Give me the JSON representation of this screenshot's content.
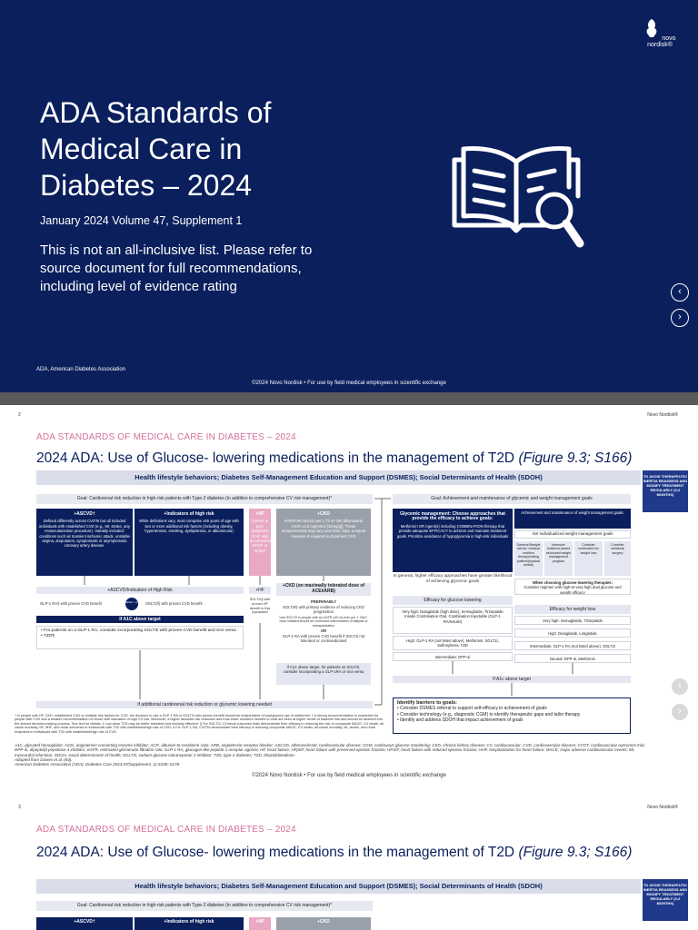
{
  "slide1": {
    "brand": "novo nordisk®",
    "title": "ADA Standards of Medical Care in Diabetes – 2024",
    "subtitle": "January 2024 Volume 47, Supplement 1",
    "note": "This is not an all-inclusive list. Please refer to source document for full recommendations, including level of evidence rating",
    "abbreviation": "ADA, American Diabetes Association",
    "footer": "©2024 Novo Nordisk • For use by field medical employees in scientific exchange",
    "icon": "book-magnifier-icon"
  },
  "slide2": {
    "page_number": "2",
    "brand": "Novo Nordisk®",
    "kicker": "ADA STANDARDS OF MEDICAL CARE IN DIABETES – 2024",
    "title": "2024 ADA: Use of Glucose- lowering medications in the management of T2D",
    "title_ref": "(Figure 9.3; S166)",
    "top_bar": "Health lifestyle behaviors; Diabetes Self-Management Education and Support (DSMES); Social Determinants of Health (SDOH)",
    "side_box": "TO AVOID THERAPEUTIC INERTIA REASSESS AND MODIFY TREATMENT REGULARLY (3-6 MONTHS)",
    "goal_left": "Goal: Cardiorenal risk reduction in high-risk patients with Type-2 diabetes (in addition to comprehensive CV risk management)*",
    "goal_right": "Goal: Achievement and maintenance of glycemic and weight management goals",
    "ascvd_head": "+ASCVD†",
    "ascvd_text": "Defined differently across CVOTs but all included individuals with established CVD (e.g., MI, stroke, any revascularization procedure). Variably included: conditions such as transient ischemic attack, unstable angina, amputation, symptomatic or asymptomatic coronary artery disease.",
    "risk_head": "+Indicators of high risk",
    "risk_text": "While definitions vary, most comprise ≥55 years of age with two or more additional risk factors (including obesity, hypertension, smoking, dyslipidemia, or albuminuria)",
    "hf_head": "+HF",
    "hf_text": "Current or prior symptoms of HF with documented HFrEF or HFpEF",
    "ckd_head": "+CKD",
    "ckd_text": "eGFR<60 mL/min per 1.73 m² OR albuminuria (ACR ≥3.0 mg/mmol [30mg/g]). These measurements may vary over time; thus, a repeat measure is required to document CKD",
    "ascvd_risk_banner": "+ASCVD/Indicators of High Risk",
    "glp1_text": "GLP-1 RA§ with proven CVD benefit",
    "either_or": "Either / or",
    "sglt2_text": "SGLT2i§ with proven CVD benefit",
    "a1c_target": "If A1C above target",
    "ascvd_bullets": [
      "For patients on a GLP-1 RA, consider incorporating SGLT2i with proven CVD benefit and vice versa",
      "TZD¶"
    ],
    "hf_banner": "+HF",
    "hf_box": "SGLT2i§ with proven HF benefit in this population",
    "ckd_banner": "+CKD (on maximally tolerated dose of ACEi/ARB)",
    "preferably": "PREFERABLY",
    "ckd_box": "SGLT2i§ with primary evidence of reducing CKD progression",
    "ckd_box2": "Use SGLT2i in people with an eGFR ≥20 mL/min per 1.73m²; once initiated should be continued until initiation of dialysis or transplantation",
    "or": "OR",
    "ckd_box3": "GLP-1 RA with proven CVD benefit if SGLT2i not tolerated or contraindicated",
    "ckd_box4": "If A1C above target, for patients on SGLT2i, consider incorporating a GLP-1RA or vice versa",
    "cardiorenal_bar": "If additional cardiorenal risk reduction or glycemic lowering needed",
    "glycemic_head": "Glycemic management: Choose approaches that provide the efficacy to achieve goals:",
    "glycemic_text": "Metformin OR Agent(s) including COMBINATION therapy that provide adequate EFFICACY to achieve and maintain treatment goals. Prioritize avoidance of hypoglycemia in high-risk individuals",
    "weight_head": "Achievement and maintenance of weight management goals:",
    "weight_sub": "Set individualized weight management goals",
    "weight_cols": [
      "General lifestyle advice: medical nutrition therapy/eating pattern/physical activity",
      "Intensive evidence-based structured weight management program",
      "Consider medication for weight loss",
      "Consider metabolic surgery"
    ],
    "glucose_thera": "When choosing glucose-lowering therapies:",
    "glucose_thera_text": "Consider regimen with high-to-very-high dual glucose and weight efficacy",
    "higher_efficacy": "In general, higher efficacy approaches have greater likelihood of achieving glycemic goals",
    "efficacy_glucose": "Efficacy for glucose lowering",
    "very_high_g": "Very high: Dulaglutide (high dose), Semaglutide, Tirzepatide",
    "insulin": "Insulin Combination Oral, Combination Injectable (GLP-1 RA/Insulin)",
    "high_g": "High: GLP-1 RA (not listed above), Metformin, SGLT2i, Sulfonylurea, TZD",
    "intermediate_g": "Intermediate: DPP-4i",
    "efficacy_weight": "Efficacy for weight loss",
    "very_high_w": "Very high: Semaglutide, Tirzepatide",
    "high_w": "High: Dulaglutide, Liraglutide",
    "intermediate_w": "Intermediate: GLP-1 RA (not listed above), SGLT2i",
    "neutral_w": "Neutral: DPP-4i, Metformin",
    "a1c_right": "If A1c above target",
    "barriers_head": "Identify barriers to goals:",
    "barriers": [
      "Consider DSMES referral to support self-efficacy in achievement of goals",
      "Consider technology (e.g., diagnostic CGM) to identify therapeutic gaps and tailor therapy",
      "Identify and address SDOH that impact achievement of goals"
    ],
    "footnote": "* In people with HF, CKD, established CVD or multiple risk factors for CVD, the decision to use a GLP-1 RA or SGLT2i with proven benefit should be independent of background use of metformin; † A strong recommendation is warranted for people with CVD and a weaker recommendation for those with indicators of high CV risk. Moreover, a higher absolute risk reduction and thus lower numbers needed to treat are seen at higher levels of baseline risk and should be factored into the shared decision-making process. See text for details; ‡ Low-dose TZD may be better tolerated and similarly effective; § For SGLT2i, CV/renal outcomes trials demonstrate their efficacy in reducing the risk of composite MACE, CV death, all-cause mortality, MI, HHF, and renal outcomes in individuals with T2D with established/high risk of CVD; # For GLP-1 RA, CVOTs demonstrate their efficacy in reducing composite MACE, CV death, all-cause mortality, MI, stroke, and renal endpoints in individuals with T2D with established/high risk of CVD.",
    "abbreviations": "A1C, glycated hemoglobin; ACEi, angiotensin-converting enzyme inhibitor; ACR, albumin-to-creatinine ratio; ARB, angiotensin receptor blocker; ASCVD, atherosclerotic cardiovascular disease; CGM, continuous glucose monitoring; CKD, chronic kidney disease; CV, cardiovascular; CVD, cardiovascular disease; CVOT, cardiovascular outcomes trial; DPP-4i, dipeptidyl peptidase 4 inhibitor; eGFR, estimated glomerular filtration rate; GLP-1 RA, glucagon-like peptide 1 receptor agonist; HF, heart failure; HFpEF, heart failure with preserved ejection fraction; HFrEF, heart failure with reduced ejection fraction; HHF, hospitalization for heart failure; MACE, major adverse cardiovascular events; MI, myocardial infarction; SDOH, social determinants of health; SGLT2i, sodium-glucose cotransporter 2 inhibitor; T2D, type 2 diabetes; TZD, thiazolidinedione.",
    "adapted": "Adapted from Davies et al. (84).",
    "source": "American Diabetes Association (ADA). Diabetes Care 2024;47(Supplement_1):S158–S178",
    "footer": "©2024 Novo Nordisk • For use by field medical employees in scientific exchange"
  },
  "slide3": {
    "page_number": "3",
    "brand": "Novo Nordisk®",
    "kicker": "ADA STANDARDS OF MEDICAL CARE IN DIABETES – 2024",
    "title": "2024 ADA: Use of Glucose- lowering medications in the management of T2D",
    "title_ref": "(Figure 9.3; S166)",
    "top_bar": "Health lifestyle behaviors; Diabetes Self-Management Education and Support (DSMES); Social Determinants of Health (SDOH)",
    "side_box": "TO AVOID THERAPEUTIC INERTIA REASSESS AND MODIFY TREATMENT REGULARLY (3-6 MONTHS)",
    "goal_left": "Goal: Cardiorenal risk reduction in high-risk patients with Type-2 diabetes (in addition to comprehensive CV risk management)*",
    "ascvd_head": "+ASCVD†",
    "risk_head": "+Indicators of high risk",
    "hf_head": "+HF",
    "ckd_head": "+CKD"
  },
  "nav": {
    "prev": "‹",
    "next": "›"
  }
}
